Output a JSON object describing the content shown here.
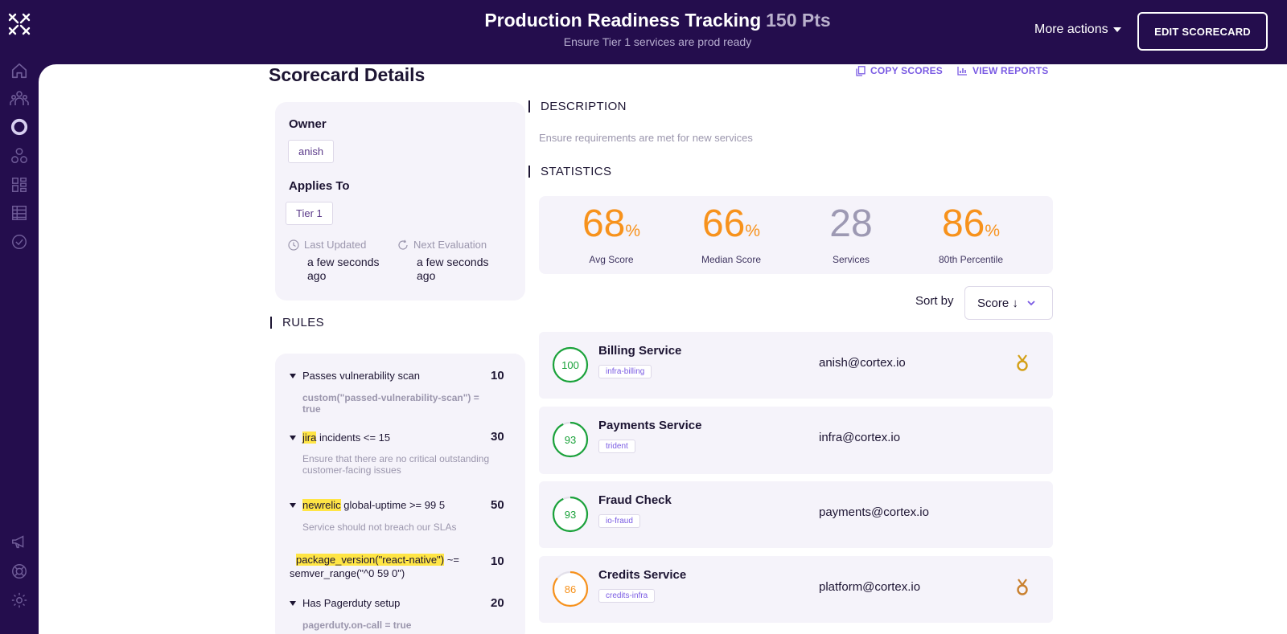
{
  "header": {
    "title": "Production Readiness Tracking",
    "points": "150 Pts",
    "subtitle": "Ensure Tier 1 services are prod ready",
    "more_actions": "More actions",
    "edit_button": "EDIT SCORECARD"
  },
  "sidebar": {
    "icons": [
      "home-icon",
      "team-icon",
      "scorecard-icon",
      "catalog-icon",
      "dashboard-icon",
      "table-icon",
      "check-circle-icon",
      "megaphone-icon",
      "help-icon",
      "settings-icon"
    ]
  },
  "page": {
    "title": "Scorecard Details",
    "copy_scores": "COPY SCORES",
    "view_reports": "VIEW REPORTS"
  },
  "details": {
    "owner_label": "Owner",
    "owner": "anish",
    "applies_label": "Applies To",
    "applies": "Tier 1",
    "last_updated_label": "Last Updated",
    "last_updated": "a few seconds ago",
    "next_eval_label": "Next Evaluation",
    "next_eval": "a few seconds ago"
  },
  "description": {
    "header": "DESCRIPTION",
    "text": "Ensure requirements are met for new services"
  },
  "statistics": {
    "header": "STATISTICS",
    "items": [
      {
        "value": "68",
        "suffix": "%",
        "label": "Avg Score",
        "color": "#f7921c"
      },
      {
        "value": "66",
        "suffix": "%",
        "label": "Median Score",
        "color": "#f7921c"
      },
      {
        "value": "28",
        "suffix": "",
        "label": "Services",
        "color": "#9d99b3"
      },
      {
        "value": "86",
        "suffix": "%",
        "label": "80th Percentile",
        "color": "#f7921c"
      }
    ]
  },
  "sort": {
    "label": "Sort by",
    "value": "Score ↓"
  },
  "rules": {
    "header": "RULES",
    "items": [
      {
        "pre": "",
        "highlight": "",
        "title": "Passes vulnerability scan",
        "points": "10",
        "detail": "custom(\"passed-vulnerability-scan\") = true"
      },
      {
        "pre": "",
        "highlight": "jira",
        "title": " incidents <= 15",
        "points": "30",
        "detail": "Ensure that there are no critical outstanding customer-facing issues"
      },
      {
        "pre": "",
        "highlight": "newrelic",
        "title": " global-uptime >= 99 5",
        "points": "50",
        "detail": "Service should not breach our SLAs"
      },
      {
        "pre": "",
        "highlight": "package_version(\"react-native\")",
        "title": " ~=",
        "line2": "semver_range(\"^0 59 0\")",
        "points": "10",
        "detail": ""
      },
      {
        "pre": "",
        "highlight": "",
        "title": "Has Pagerduty setup",
        "points": "20",
        "detail": "pagerduty.on-call = true"
      }
    ]
  },
  "services": [
    {
      "score": 100,
      "name": "Billing Service",
      "tag": "infra-billing",
      "email": "anish@cortex.io",
      "color": "#1aa23a",
      "medal": "gold"
    },
    {
      "score": 93,
      "name": "Payments Service",
      "tag": "trident",
      "email": "infra@cortex.io",
      "color": "#1aa23a",
      "medal": ""
    },
    {
      "score": 93,
      "name": "Fraud Check",
      "tag": "io-fraud",
      "email": "payments@cortex.io",
      "color": "#1aa23a",
      "medal": ""
    },
    {
      "score": 86,
      "name": "Credits Service",
      "tag": "credits-infra",
      "email": "platform@cortex.io",
      "color": "#f7921c",
      "medal": "bronze"
    }
  ]
}
